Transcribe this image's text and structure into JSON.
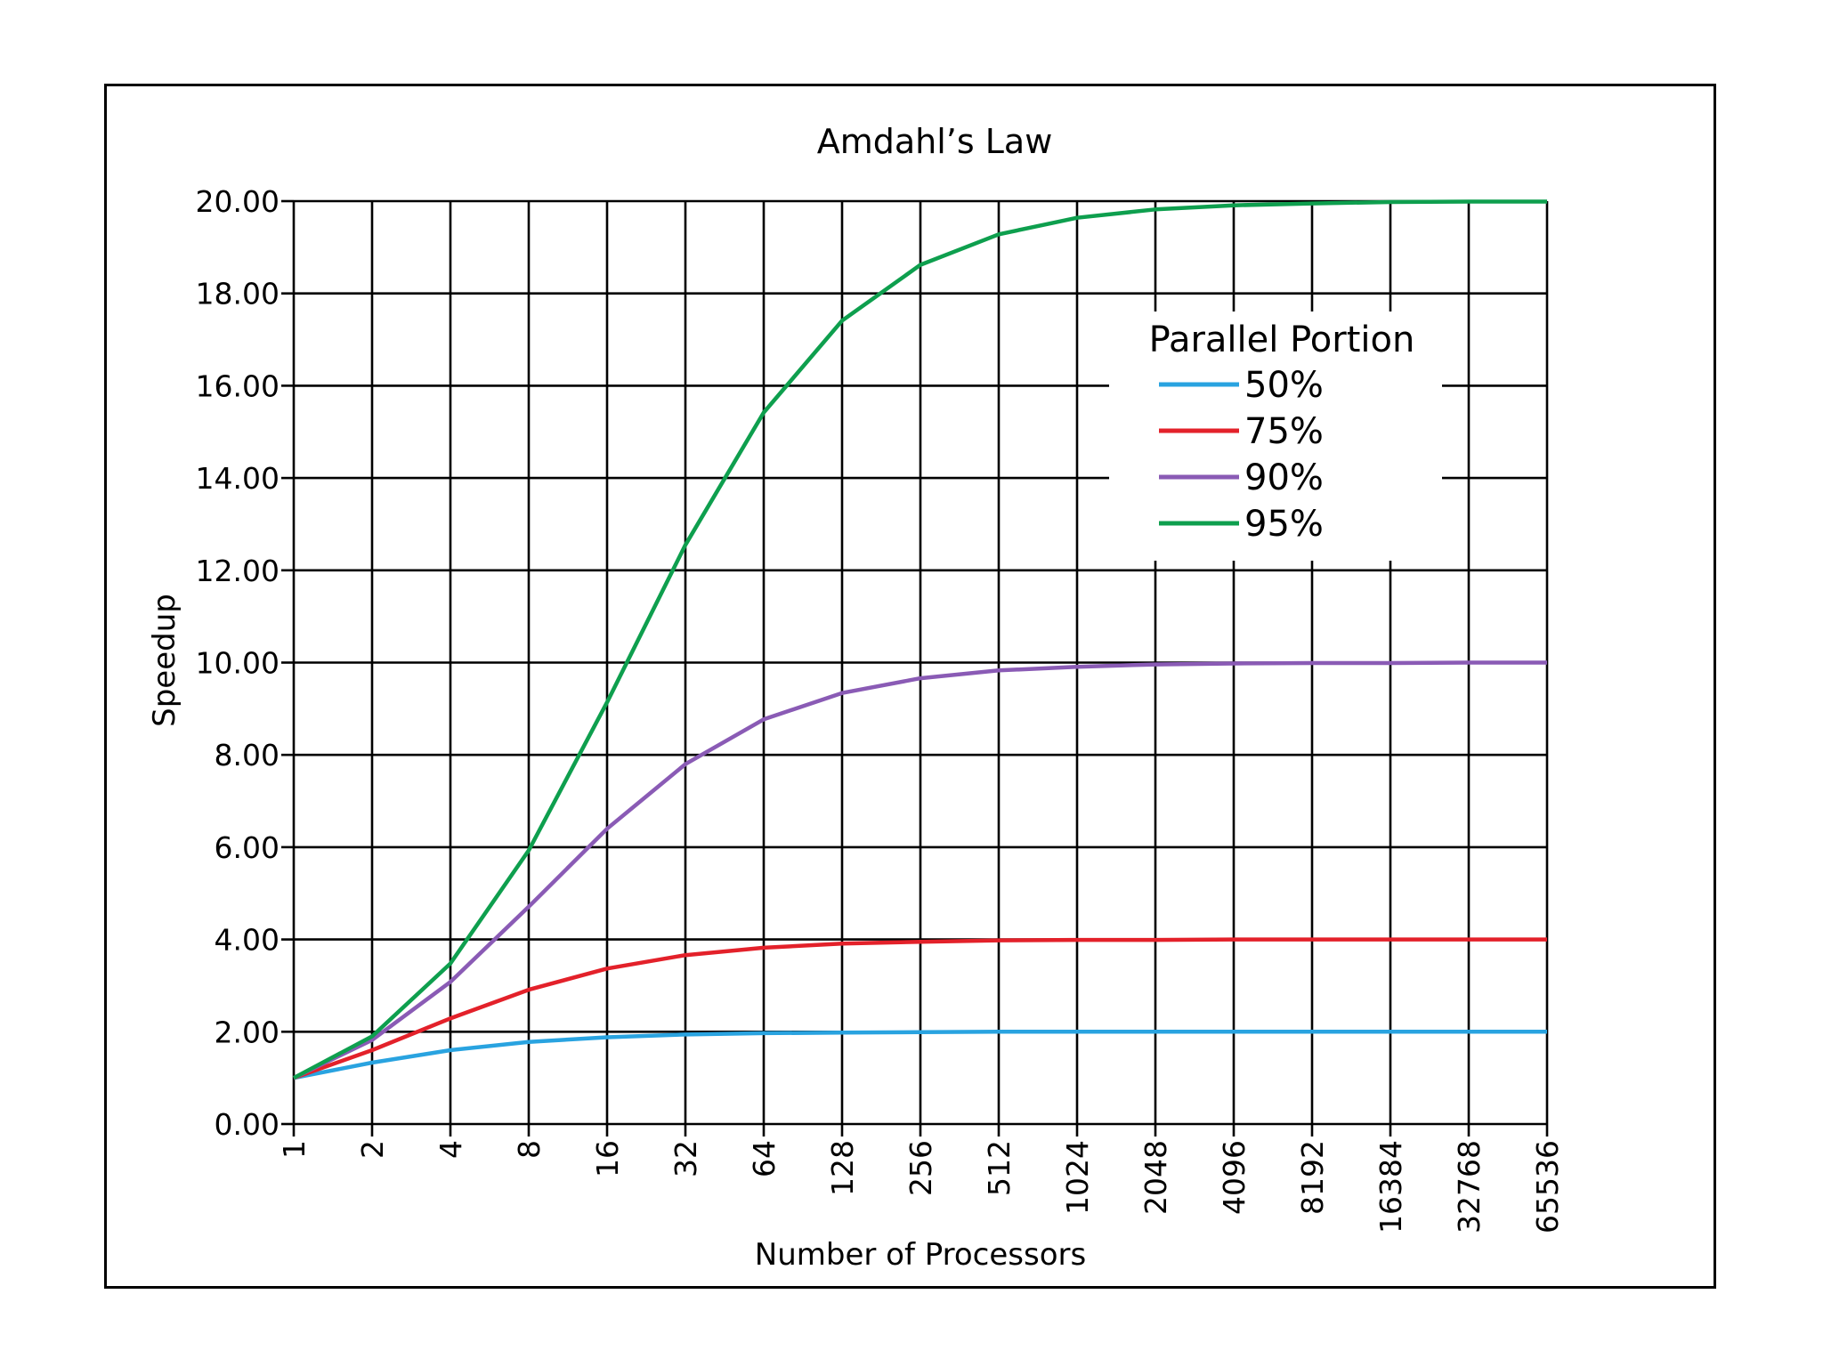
{
  "chart_data": {
    "type": "line",
    "title": "Amdahl’s Law",
    "xlabel": "Number of Processors",
    "ylabel": "Speedup",
    "x_scale": "log2",
    "categories": [
      "1",
      "2",
      "4",
      "8",
      "16",
      "32",
      "64",
      "128",
      "256",
      "512",
      "1024",
      "2048",
      "4096",
      "8192",
      "16384",
      "32768",
      "65536"
    ],
    "y_ticks": [
      "0.00",
      "2.00",
      "4.00",
      "6.00",
      "8.00",
      "10.00",
      "12.00",
      "14.00",
      "16.00",
      "18.00",
      "20.00"
    ],
    "ylim": [
      0,
      20
    ],
    "grid": true,
    "legend": {
      "title": "Parallel Portion",
      "position": "upper-right"
    },
    "series": [
      {
        "name": "50%",
        "color": "#29a3e0",
        "values": [
          1.0,
          1.33,
          1.6,
          1.78,
          1.88,
          1.94,
          1.97,
          1.98,
          1.99,
          2.0,
          2.0,
          2.0,
          2.0,
          2.0,
          2.0,
          2.0,
          2.0
        ]
      },
      {
        "name": "75%",
        "color": "#e3212a",
        "values": [
          1.0,
          1.6,
          2.29,
          2.91,
          3.37,
          3.66,
          3.82,
          3.91,
          3.95,
          3.98,
          3.99,
          3.99,
          4.0,
          4.0,
          4.0,
          4.0,
          4.0
        ]
      },
      {
        "name": "90%",
        "color": "#8a5bb5",
        "values": [
          1.0,
          1.82,
          3.08,
          4.71,
          6.4,
          7.8,
          8.77,
          9.34,
          9.66,
          9.83,
          9.91,
          9.96,
          9.98,
          9.99,
          9.99,
          10.0,
          10.0
        ]
      },
      {
        "name": "95%",
        "color": "#0e9f4e",
        "values": [
          1.0,
          1.9,
          3.48,
          5.93,
          9.14,
          12.55,
          15.42,
          17.41,
          18.62,
          19.28,
          19.64,
          19.82,
          19.91,
          19.95,
          19.98,
          19.99,
          19.99
        ]
      }
    ]
  }
}
